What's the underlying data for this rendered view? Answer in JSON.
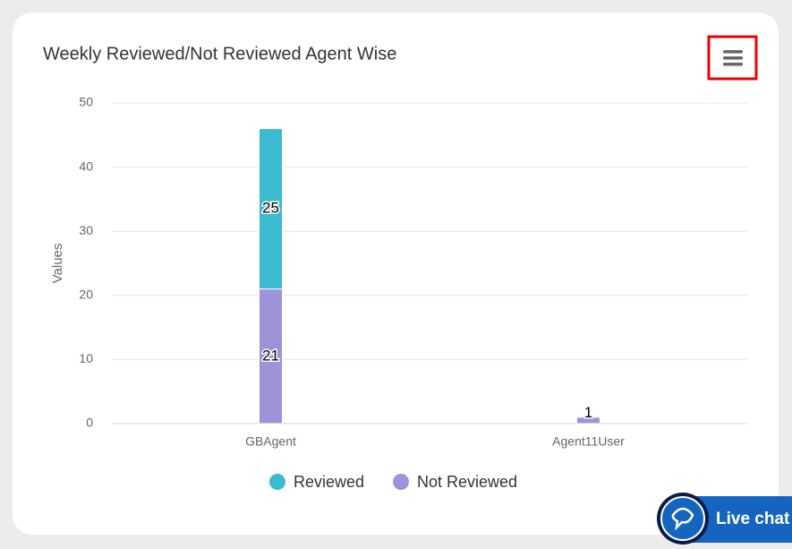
{
  "chart_data": {
    "type": "stacked-bar",
    "title": "Weekly Reviewed/Not Reviewed Agent Wise",
    "y_label": "Values",
    "categories": [
      "GBAgent",
      "Agent11User"
    ],
    "series": [
      {
        "name": "Reviewed",
        "color": "#3bbad0",
        "values": [
          25,
          null
        ]
      },
      {
        "name": "Not Reviewed",
        "color": "#9c93d8",
        "values": [
          21,
          1
        ]
      }
    ],
    "ylim": [
      0,
      50
    ],
    "yticks": [
      0,
      10,
      20,
      30,
      40,
      50
    ],
    "grid": true
  },
  "ui": {
    "live_chat": "Live chat"
  }
}
